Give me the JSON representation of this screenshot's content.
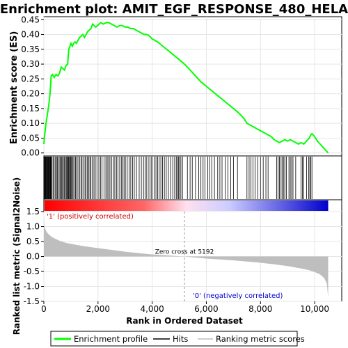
{
  "chart_data": {
    "type": "line",
    "title": "Enrichment plot: AMIT_EGF_RESPONSE_480_HELA",
    "top_panel": {
      "ylabel": "Enrichment score (ES)",
      "ylim": [
        -0.01,
        0.46
      ],
      "yticks": [
        "0.00",
        "0.05",
        "0.10",
        "0.15",
        "0.20",
        "0.25",
        "0.30",
        "0.35",
        "0.40",
        "0.45"
      ],
      "ytick_values": [
        0.0,
        0.05,
        0.1,
        0.15,
        0.2,
        0.25,
        0.3,
        0.35,
        0.4,
        0.45
      ],
      "series": [
        {
          "name": "Enrichment profile",
          "color": "#00ff00",
          "x": [
            0,
            30,
            80,
            130,
            180,
            230,
            270,
            320,
            380,
            450,
            520,
            580,
            640,
            700,
            760,
            820,
            880,
            920,
            960,
            1000,
            1050,
            1100,
            1150,
            1200,
            1260,
            1320,
            1380,
            1440,
            1500,
            1560,
            1620,
            1680,
            1740,
            1800,
            1860,
            1920,
            1980,
            2040,
            2100,
            2200,
            2300,
            2400,
            2500,
            2600,
            2700,
            2800,
            2900,
            3000,
            3100,
            3200,
            3300,
            3400,
            3500,
            3600,
            3700,
            3800,
            3900,
            4000,
            4200,
            4400,
            4600,
            4800,
            5000,
            5192,
            5400,
            5600,
            5800,
            6000,
            6200,
            6400,
            6600,
            6800,
            7000,
            7200,
            7400,
            7500,
            7600,
            7700,
            7800,
            7900,
            8000,
            8100,
            8200,
            8300,
            8400,
            8500,
            8600,
            8700,
            8800,
            8900,
            9000,
            9100,
            9200,
            9300,
            9400,
            9500,
            9600,
            9700,
            9750,
            9800,
            9850,
            9900,
            10000,
            10100,
            10200,
            10300,
            10400,
            10500
          ],
          "values": [
            0.03,
            0.06,
            0.1,
            0.13,
            0.16,
            0.2,
            0.26,
            0.265,
            0.255,
            0.265,
            0.26,
            0.27,
            0.29,
            0.285,
            0.28,
            0.295,
            0.3,
            0.35,
            0.36,
            0.37,
            0.36,
            0.37,
            0.375,
            0.37,
            0.38,
            0.39,
            0.395,
            0.4,
            0.39,
            0.4,
            0.41,
            0.415,
            0.42,
            0.435,
            0.43,
            0.425,
            0.43,
            0.435,
            0.44,
            0.435,
            0.44,
            0.44,
            0.435,
            0.43,
            0.425,
            0.43,
            0.43,
            0.425,
            0.425,
            0.42,
            0.42,
            0.415,
            0.41,
            0.405,
            0.4,
            0.4,
            0.395,
            0.385,
            0.375,
            0.36,
            0.345,
            0.33,
            0.315,
            0.3,
            0.28,
            0.26,
            0.24,
            0.225,
            0.21,
            0.195,
            0.18,
            0.165,
            0.15,
            0.135,
            0.115,
            0.1,
            0.095,
            0.09,
            0.085,
            0.08,
            0.075,
            0.07,
            0.065,
            0.06,
            0.055,
            0.045,
            0.04,
            0.035,
            0.04,
            0.045,
            0.04,
            0.045,
            0.04,
            0.035,
            0.03,
            0.035,
            0.03,
            0.04,
            0.045,
            0.05,
            0.06,
            0.065,
            0.055,
            0.04,
            0.03,
            0.02,
            0.01,
            0.0
          ]
        }
      ]
    },
    "hits_panel": {
      "positions": [
        5,
        20,
        40,
        55,
        75,
        90,
        105,
        130,
        150,
        165,
        180,
        200,
        215,
        235,
        250,
        270,
        300,
        340,
        380,
        420,
        470,
        500,
        540,
        590,
        620,
        650,
        690,
        720,
        760,
        800,
        830,
        860,
        880,
        910,
        930,
        960,
        990,
        1010,
        1050,
        1080,
        1120,
        1170,
        1210,
        1260,
        1320,
        1370,
        1410,
        1470,
        1520,
        1560,
        1610,
        1660,
        1700,
        1740,
        1790,
        1850,
        1900,
        1960,
        2030,
        2090,
        2150,
        2220,
        2290,
        2340,
        2390,
        2440,
        2500,
        2570,
        2620,
        2680,
        2740,
        2800,
        2860,
        2910,
        2960,
        3010,
        3080,
        3150,
        3210,
        3280,
        3340,
        3420,
        3520,
        3600,
        3680,
        3740,
        3800,
        3880,
        3960,
        4000,
        4080,
        4140,
        4200,
        4260,
        4320,
        4380,
        4450,
        4520,
        4600,
        4680,
        4760,
        4830,
        4890,
        4930,
        4970,
        5010,
        5060,
        5120,
        5300,
        5400,
        5480,
        5600,
        5720,
        5800,
        5880,
        5950,
        6050,
        6120,
        6200,
        6300,
        6420,
        6500,
        6580,
        6700,
        6800,
        6900,
        7000,
        7150,
        7500,
        7580,
        7650,
        7720,
        7800,
        7900,
        8000,
        8100,
        8200,
        8280,
        8600,
        8650,
        8700,
        8760,
        8800,
        8860,
        8900,
        8960,
        9050,
        9100,
        9150,
        9200,
        9300,
        9500,
        9550,
        9600,
        9700,
        9780,
        9820,
        9860,
        9900
      ]
    },
    "rank_panel": {
      "ylabel": "Ranked list metric (Signal2Noise)",
      "xlabel": "Rank in Ordered Dataset",
      "ylim": [
        -1.5,
        1.5
      ],
      "yticks": [
        "-1.5",
        "-1.0",
        "-0.5",
        "0.0",
        "0.5",
        "1.0",
        "1.5"
      ],
      "ytick_values": [
        -1.5,
        -1.0,
        -0.5,
        0.0,
        0.5,
        1.0,
        1.5
      ],
      "xticks": [
        "0",
        "2,000",
        "4,000",
        "6,000",
        "8,000",
        "10,000"
      ],
      "xtick_values": [
        0,
        2000,
        4000,
        6000,
        8000,
        10000
      ],
      "xlim": [
        0,
        11000
      ],
      "n_genes": 10500,
      "curve_x": [
        0,
        20,
        60,
        120,
        200,
        300,
        450,
        600,
        800,
        1000,
        1500,
        2000,
        2500,
        3000,
        3500,
        4000,
        4500,
        5000,
        5192,
        5500,
        6000,
        6500,
        7000,
        7500,
        8000,
        8500,
        9000,
        9500,
        9800,
        10000,
        10200,
        10350,
        10450,
        10500
      ],
      "curve_values": [
        1.3,
        1.0,
        0.9,
        0.8,
        0.72,
        0.65,
        0.58,
        0.52,
        0.46,
        0.42,
        0.34,
        0.28,
        0.22,
        0.16,
        0.11,
        0.07,
        0.04,
        0.01,
        0.0,
        -0.03,
        -0.07,
        -0.1,
        -0.13,
        -0.17,
        -0.21,
        -0.26,
        -0.32,
        -0.4,
        -0.46,
        -0.52,
        -0.6,
        -0.72,
        -0.9,
        -1.38
      ],
      "zero_cross_label": "Zero cross at 5192",
      "zero_cross": 5192,
      "pos_label": "'1' (positively correlated)",
      "neg_label": "'0' (negatively correlated)"
    },
    "legend": {
      "placement": "bottom",
      "entries": [
        {
          "label": "Enrichment profile",
          "color": "#00ff00"
        },
        {
          "label": "Hits",
          "color": "#000000"
        },
        {
          "label": "Ranking metric scores",
          "color": "#bebebe"
        }
      ]
    },
    "colors": {
      "profile": "#00ff00",
      "hit": "#000000",
      "metric_fill": "#bebebe",
      "pos_label": "#cc0000",
      "neg_label": "#0000cc",
      "axis": "#000000",
      "grid": "#e5e5e5",
      "heat_stops": [
        "#ff0000",
        "#ff9999",
        "#ffffff",
        "#9999ff",
        "#0000cc"
      ]
    }
  }
}
